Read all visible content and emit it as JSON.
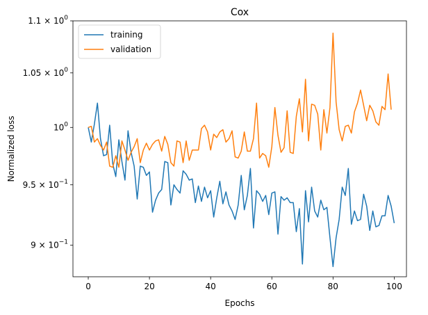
{
  "chart_data": {
    "type": "line",
    "title": "Cox",
    "xlabel": "Epochs",
    "ylabel": "Normalized loss",
    "yscale": "log",
    "xlim": [
      -5,
      104
    ],
    "ylim": [
      0.875,
      1.1
    ],
    "xticks": [
      0,
      20,
      40,
      60,
      80,
      100
    ],
    "xtick_labels": [
      "0",
      "20",
      "40",
      "60",
      "80",
      "100"
    ],
    "yticks": [
      {
        "value": 0.9,
        "mant": "9",
        "exp": "−1"
      },
      {
        "value": 0.95,
        "mant": "9.5",
        "exp": "−1"
      },
      {
        "value": 1.0,
        "plain": "10",
        "exp": "0"
      },
      {
        "value": 1.05,
        "mant": "1.05",
        "exp": "0"
      },
      {
        "value": 1.1,
        "mant": "1.1",
        "exp": "0"
      }
    ],
    "legend_position": "top-left",
    "series": [
      {
        "name": "training",
        "color": "#1f77b4",
        "values": [
          1.0,
          0.987,
          1.003,
          1.022,
          0.99,
          0.975,
          0.976,
          1.002,
          0.968,
          0.957,
          0.989,
          0.97,
          0.954,
          0.997,
          0.978,
          0.966,
          0.938,
          0.966,
          0.965,
          0.958,
          0.961,
          0.927,
          0.937,
          0.943,
          0.946,
          0.97,
          0.969,
          0.933,
          0.95,
          0.946,
          0.943,
          0.962,
          0.959,
          0.954,
          0.955,
          0.935,
          0.949,
          0.936,
          0.948,
          0.939,
          0.945,
          0.923,
          0.939,
          0.953,
          0.934,
          0.944,
          0.933,
          0.928,
          0.921,
          0.933,
          0.958,
          0.929,
          0.941,
          0.964,
          0.914,
          0.945,
          0.942,
          0.936,
          0.941,
          0.925,
          0.943,
          0.944,
          0.909,
          0.94,
          0.937,
          0.939,
          0.935,
          0.935,
          0.911,
          0.93,
          0.885,
          0.945,
          0.919,
          0.948,
          0.928,
          0.923,
          0.937,
          0.929,
          0.931,
          0.906,
          0.883,
          0.906,
          0.921,
          0.948,
          0.941,
          0.964,
          0.917,
          0.928,
          0.92,
          0.921,
          0.942,
          0.932,
          0.912,
          0.928,
          0.915,
          0.916,
          0.924,
          0.924,
          0.941,
          0.932,
          0.918
        ]
      },
      {
        "name": "validation",
        "color": "#ff7f0e",
        "values": [
          1.0,
          1.001,
          0.987,
          0.99,
          0.984,
          0.98,
          0.987,
          0.966,
          0.965,
          0.975,
          0.965,
          0.988,
          0.98,
          0.971,
          0.978,
          0.983,
          0.99,
          0.969,
          0.98,
          0.986,
          0.98,
          0.985,
          0.988,
          0.989,
          0.979,
          0.992,
          0.985,
          0.969,
          0.966,
          0.988,
          0.987,
          0.969,
          0.988,
          0.971,
          0.98,
          0.98,
          0.98,
          0.999,
          1.002,
          0.996,
          0.98,
          0.994,
          0.991,
          0.996,
          0.998,
          0.987,
          0.99,
          0.997,
          0.974,
          0.973,
          0.979,
          0.996,
          0.979,
          0.979,
          0.99,
          1.022,
          0.973,
          0.977,
          0.975,
          0.965,
          0.983,
          1.018,
          0.993,
          0.978,
          0.982,
          1.015,
          0.978,
          0.977,
          1.01,
          1.026,
          0.996,
          1.044,
          0.988,
          1.021,
          1.02,
          1.012,
          0.98,
          1.016,
          0.995,
          1.018,
          1.088,
          1.023,
          0.998,
          0.988,
          1.001,
          1.002,
          0.995,
          1.014,
          1.022,
          1.034,
          1.02,
          1.006,
          1.02,
          1.015,
          1.005,
          1.002,
          1.019,
          1.016,
          1.049,
          1.016
        ]
      }
    ]
  }
}
